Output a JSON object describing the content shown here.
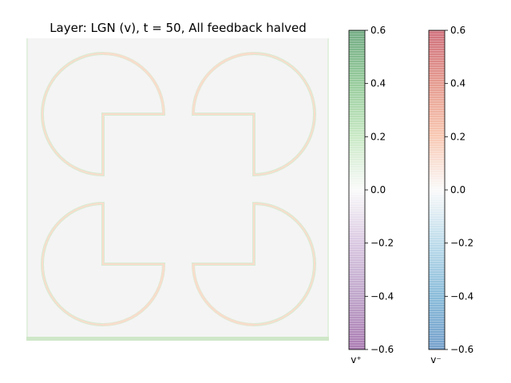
{
  "title": "Layer: LGN (v), t = 50, All feedback halved",
  "chart_data": {
    "type": "heatmap",
    "title": "Layer: LGN (v), t = 50, All feedback halved",
    "description_of_values": "Kanizsa-square style pattern: four pacman disks with straight inner edges; faint positive (green) and negative (red) boundary responses on a near-zero gray background; green strip along bottom edge",
    "grid": false,
    "axes_visible": false,
    "colorbars": [
      {
        "label": "v⁺",
        "colormap": "PRGn",
        "vmin": -0.6,
        "vmax": 0.6,
        "ticks": [
          0.6,
          0.4,
          0.2,
          0.0,
          -0.2,
          -0.4,
          -0.6
        ],
        "tick_labels": [
          "0.6",
          "0.4",
          "0.2",
          "0.0",
          "−0.2",
          "−0.4",
          "−0.6"
        ],
        "colors": {
          "high": "#1b7837",
          "mid": "#f7f7f7",
          "low": "#762a83"
        }
      },
      {
        "label": "v⁻",
        "colormap": "RdBu",
        "vmin": -0.6,
        "vmax": 0.6,
        "ticks": [
          0.6,
          0.4,
          0.2,
          0.0,
          -0.2,
          -0.4,
          -0.6
        ],
        "tick_labels": [
          "0.6",
          "0.4",
          "0.2",
          "0.0",
          "−0.2",
          "−0.4",
          "−0.6"
        ],
        "colors": {
          "high": "#b2182b",
          "mid": "#f7f7f7",
          "low": "#2166ac"
        }
      }
    ],
    "image_colors": {
      "background": "#f4f4f4",
      "positive_edge": "#d7ecd2",
      "negative_edge": "#f9dccc",
      "bottom_strip": "#cfe7c8"
    }
  }
}
